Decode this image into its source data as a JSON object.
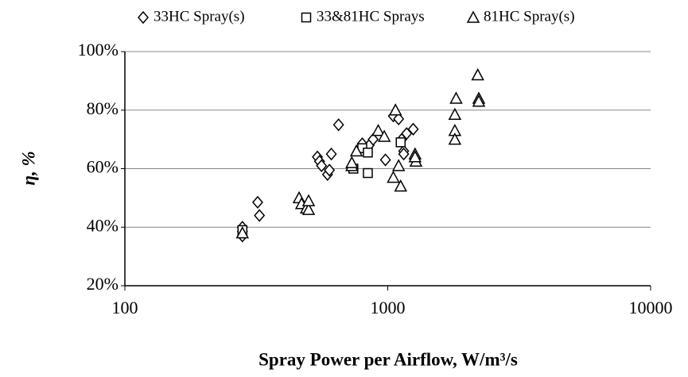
{
  "chart_data": {
    "type": "scatter",
    "x_label": "Spray Power per Airflow, W/m³/s",
    "y_label": "η, %",
    "xscale": "log",
    "xlim": [
      100,
      10000
    ],
    "xticks": [
      100,
      1000,
      10000
    ],
    "ylim": [
      20,
      100
    ],
    "yticks": [
      {
        "value": 20,
        "label": "20%"
      },
      {
        "value": 40,
        "label": "40%"
      },
      {
        "value": 60,
        "label": "60%"
      },
      {
        "value": 80,
        "label": "80%"
      },
      {
        "value": 100,
        "label": "100%"
      }
    ],
    "grid": true,
    "legend": "top",
    "series": [
      {
        "name": "33HC Spray(s)",
        "marker": "diamond",
        "color": "#000000",
        "x": [
          280,
          280,
          280,
          320,
          325,
          540,
          550,
          560,
          590,
          600,
          610,
          650,
          800,
          850,
          880,
          980,
          1050,
          1100,
          1130,
          1150,
          1180,
          1150,
          1250
        ],
        "values": [
          37,
          38.5,
          40,
          48.5,
          44,
          64,
          62.5,
          61,
          58,
          59.5,
          65,
          75,
          68.5,
          68,
          70,
          63,
          78,
          77,
          70,
          66,
          72,
          65,
          73.5
        ]
      },
      {
        "name": "33&81HC Sprays",
        "marker": "square",
        "color": "#000000",
        "x": [
          280,
          740,
          800,
          840,
          840,
          1120
        ],
        "values": [
          39,
          60,
          67,
          65.5,
          58.5,
          69
        ]
      },
      {
        "name": "81HC Spray(s)",
        "marker": "triangle",
        "color": "#000000",
        "x": [
          280,
          460,
          470,
          490,
          500,
          500,
          730,
          730,
          760,
          920,
          970,
          1050,
          1070,
          1100,
          1120,
          1270,
          1280,
          1270,
          1800,
          1800,
          1800,
          1820,
          2200,
          2220,
          2220
        ],
        "values": [
          38,
          50,
          48,
          46.5,
          46,
          49,
          61,
          62,
          66,
          73,
          71,
          57,
          80,
          61,
          54,
          65,
          62.5,
          64,
          73,
          70,
          78.5,
          84,
          92,
          84,
          83
        ]
      }
    ]
  }
}
